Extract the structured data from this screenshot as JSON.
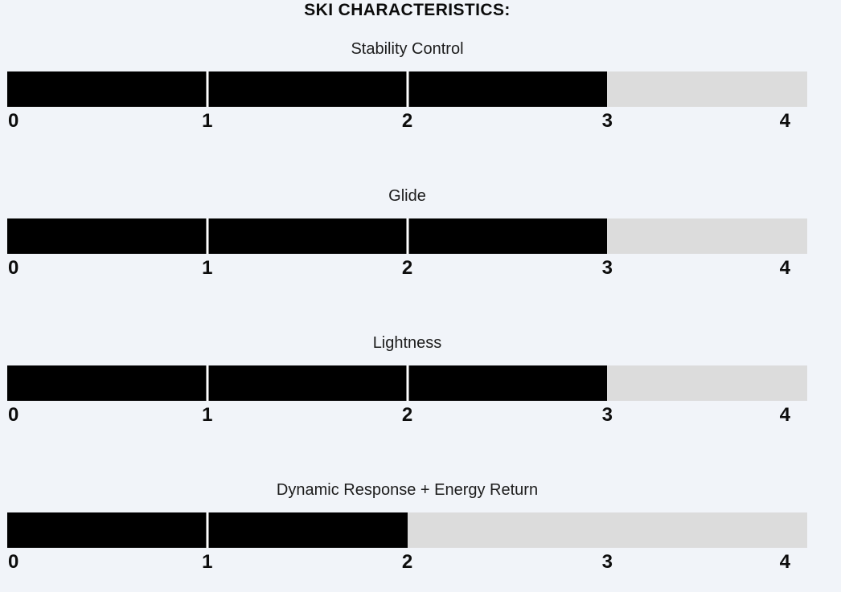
{
  "page": {
    "background_color": "#f1f4f9"
  },
  "chart_data": {
    "type": "bar",
    "variant": "horizontal-rating-gauges",
    "title": "SKI CHARACTERISTICS:",
    "categories": [
      "Stability Control",
      "Glide",
      "Lightness",
      "Dynamic Response + Energy Return"
    ],
    "values": [
      3,
      3,
      3,
      2
    ],
    "max": 4,
    "tick_labels": [
      "0",
      "1",
      "2",
      "3",
      "4"
    ],
    "grid": false,
    "legend": "none",
    "colors": {
      "filled": "#000000",
      "unfilled": "#dcdcdc",
      "separator": "#ffffff",
      "title_text": "#0c0c0c",
      "label_text": "#1c1c1c",
      "tick_text": "#0d0d0d",
      "background": "#f1f4f9"
    }
  }
}
